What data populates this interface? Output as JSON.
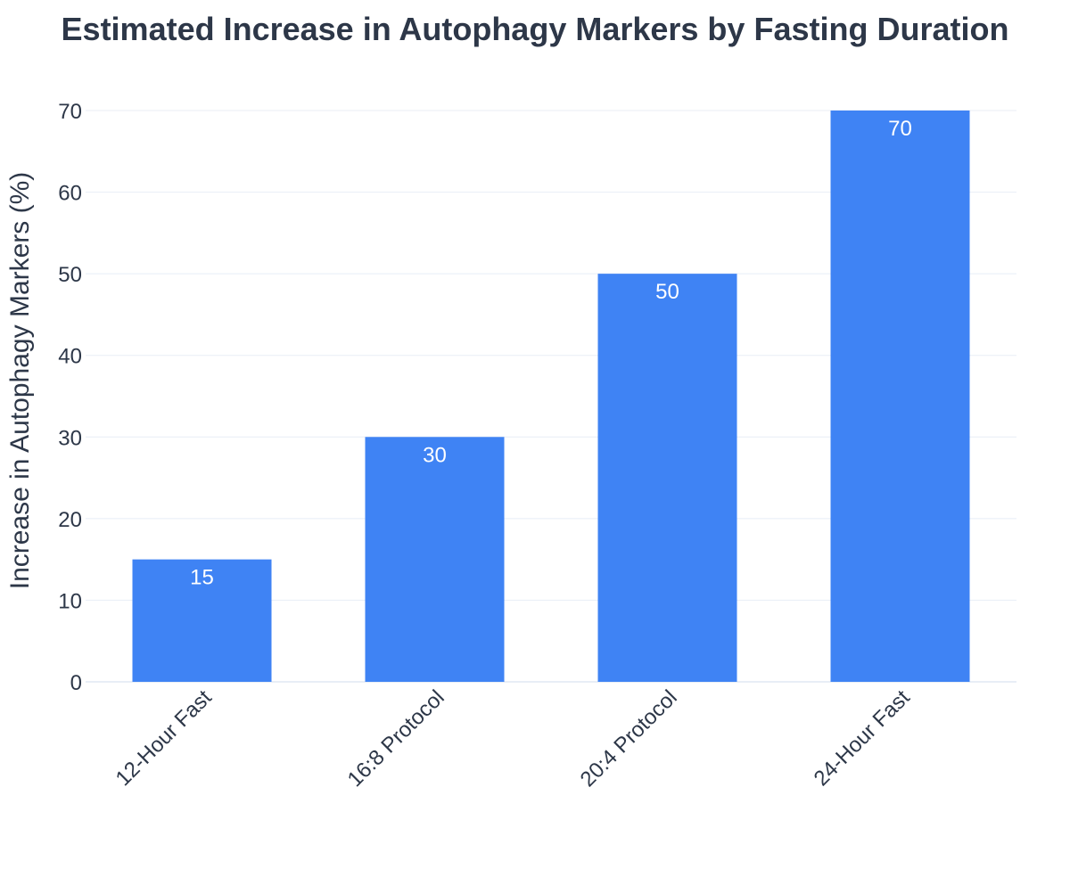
{
  "chart_data": {
    "type": "bar",
    "title": "Estimated Increase in Autophagy Markers by Fasting Duration",
    "xlabel": "",
    "ylabel": "Increase in Autophagy Markers (%)",
    "categories": [
      "12-Hour Fast",
      "16:8 Protocol",
      "20:4 Protocol",
      "24-Hour Fast"
    ],
    "values": [
      15,
      30,
      50,
      70
    ],
    "ylim": [
      0,
      70
    ],
    "yticks": [
      0,
      10,
      20,
      30,
      40,
      50,
      60,
      70
    ],
    "grid": true,
    "bar_color": "#3f83f4",
    "grid_color": "#e8eef6",
    "text_color": "#2d3748"
  }
}
